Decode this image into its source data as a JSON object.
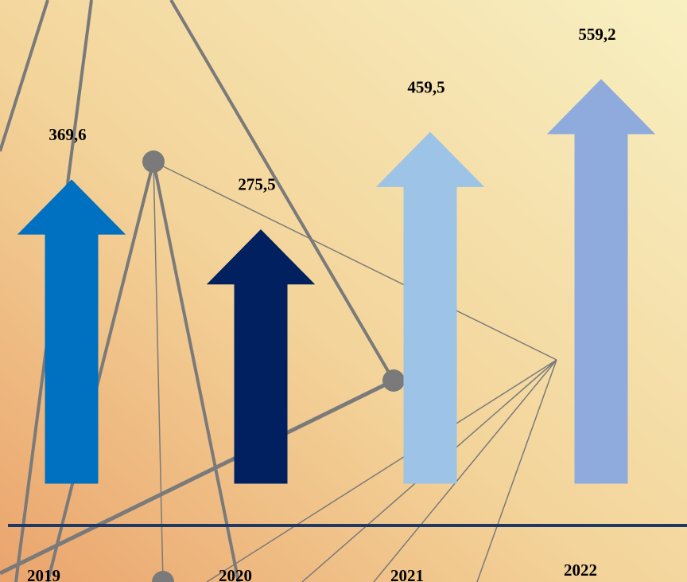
{
  "chart_data": {
    "type": "arrow-bar",
    "categories": [
      "2019",
      "2020",
      "2021",
      "2022"
    ],
    "values": [
      369.6,
      275.5,
      459.5,
      559.2
    ],
    "value_labels": [
      "369,6",
      "275,5",
      "459,5",
      "559,2"
    ],
    "colors": [
      "#0070c0",
      "#002060",
      "#9dc3e6",
      "#8faadc"
    ]
  }
}
